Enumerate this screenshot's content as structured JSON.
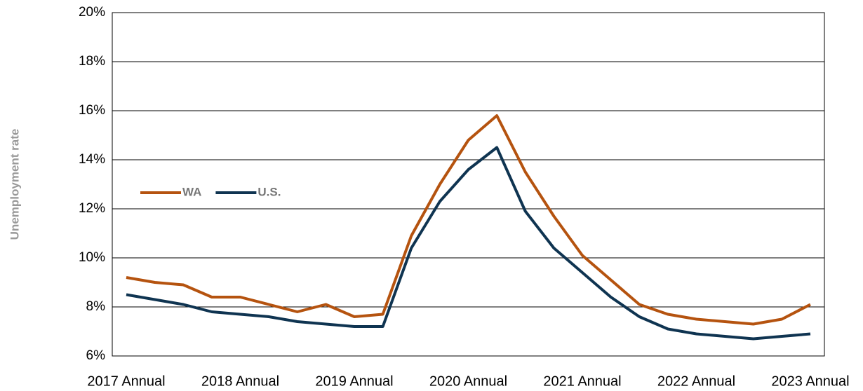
{
  "chart_data": {
    "type": "line",
    "y_label": "Unemployment rate",
    "categories": [
      "2017 Annual",
      null,
      null,
      null,
      "2018 Annual",
      null,
      null,
      null,
      "2019 Annual",
      null,
      null,
      null,
      "2020 Annual",
      null,
      null,
      null,
      "2021 Annual",
      null,
      null,
      null,
      "2022 Annual",
      null,
      null,
      null,
      "2023 Annual"
    ],
    "series": [
      {
        "name": "WA",
        "color": "#b5530f",
        "values": [
          9.2,
          9.0,
          8.9,
          8.4,
          8.4,
          8.1,
          7.8,
          8.1,
          7.6,
          7.7,
          10.9,
          13.0,
          14.8,
          15.8,
          13.5,
          11.7,
          10.1,
          9.1,
          8.1,
          7.7,
          7.5,
          7.4,
          7.3,
          7.5,
          8.1
        ]
      },
      {
        "name": "U.S.",
        "color": "#0f3451",
        "values": [
          8.5,
          8.3,
          8.1,
          7.8,
          7.7,
          7.6,
          7.4,
          7.3,
          7.2,
          7.2,
          10.4,
          12.3,
          13.6,
          14.5,
          11.9,
          10.4,
          9.4,
          8.4,
          7.6,
          7.1,
          6.9,
          6.8,
          6.7,
          6.8,
          6.9
        ]
      }
    ],
    "ylim": [
      6,
      20
    ],
    "yticks": [
      {
        "value": 6,
        "label": "6%"
      },
      {
        "value": 8,
        "label": "8%"
      },
      {
        "value": 10,
        "label": "10%"
      },
      {
        "value": 12,
        "label": "12%"
      },
      {
        "value": 14,
        "label": "14%"
      },
      {
        "value": 16,
        "label": "16%"
      },
      {
        "value": 18,
        "label": "18%"
      },
      {
        "value": 20,
        "label": "20%"
      }
    ],
    "grid": true,
    "legend": "left"
  }
}
